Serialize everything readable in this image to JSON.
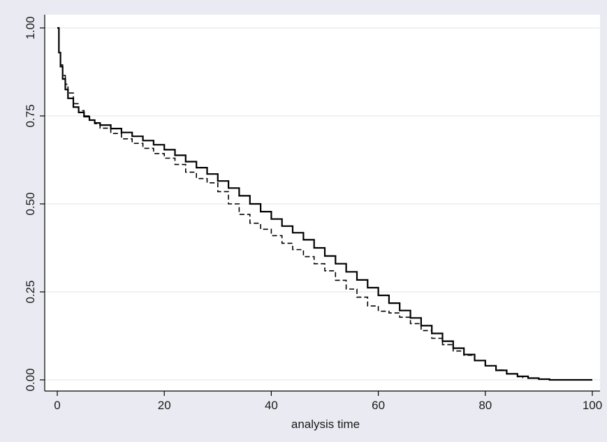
{
  "chart_data": {
    "type": "line",
    "title": "",
    "xlabel": "analysis time",
    "ylabel": "",
    "xlim": [
      0,
      100
    ],
    "ylim": [
      0,
      1
    ],
    "xticks": [
      {
        "value": 0,
        "label": "0"
      },
      {
        "value": 20,
        "label": "20"
      },
      {
        "value": 40,
        "label": "40"
      },
      {
        "value": 60,
        "label": "60"
      },
      {
        "value": 80,
        "label": "80"
      },
      {
        "value": 100,
        "label": "100"
      }
    ],
    "yticks": [
      {
        "value": 0,
        "label": "0.00"
      },
      {
        "value": 0.25,
        "label": "0.25"
      },
      {
        "value": 0.5,
        "label": "0.50"
      },
      {
        "value": 0.75,
        "label": "0.75"
      },
      {
        "value": 1,
        "label": "1.00"
      }
    ],
    "grid": "horizontal",
    "legend": "none",
    "colors": {
      "background": "#eaeaf2",
      "plot_area": "#ffffff",
      "grid": "#e3e9ed",
      "line": "#000000"
    },
    "series": [
      {
        "style": "solid",
        "x": [
          0,
          0.3,
          0.6,
          1,
          1.5,
          2,
          3,
          4,
          5,
          6,
          7,
          8,
          10,
          12,
          14,
          16,
          18,
          20,
          22,
          24,
          26,
          28,
          30,
          32,
          34,
          36,
          38,
          40,
          42,
          44,
          46,
          48,
          50,
          52,
          54,
          56,
          58,
          60,
          62,
          64,
          66,
          68,
          70,
          72,
          74,
          76,
          78,
          80,
          82,
          84,
          86,
          88,
          90,
          92,
          94,
          96,
          98,
          100
        ],
        "y": [
          1.0,
          0.93,
          0.89,
          0.855,
          0.825,
          0.8,
          0.775,
          0.76,
          0.748,
          0.738,
          0.73,
          0.724,
          0.714,
          0.703,
          0.692,
          0.68,
          0.668,
          0.654,
          0.638,
          0.62,
          0.603,
          0.585,
          0.565,
          0.545,
          0.523,
          0.5,
          0.478,
          0.457,
          0.437,
          0.418,
          0.398,
          0.375,
          0.352,
          0.33,
          0.307,
          0.284,
          0.262,
          0.24,
          0.218,
          0.197,
          0.176,
          0.154,
          0.132,
          0.11,
          0.09,
          0.072,
          0.055,
          0.04,
          0.027,
          0.017,
          0.01,
          0.005,
          0.002,
          0.0,
          0.0,
          0.0,
          0.0,
          0.0
        ]
      },
      {
        "style": "dashed",
        "x": [
          0,
          0.3,
          0.6,
          1,
          1.5,
          2,
          3,
          4,
          5,
          6,
          7,
          8,
          10,
          12,
          14,
          16,
          18,
          20,
          22,
          24,
          26,
          28,
          30,
          32,
          34,
          36,
          38,
          40,
          42,
          44,
          46,
          48,
          50,
          52,
          54,
          56,
          58,
          60,
          62,
          64,
          66,
          68,
          70,
          72,
          74,
          76,
          78,
          80,
          82,
          84,
          86,
          87
        ],
        "y": [
          1.0,
          0.93,
          0.895,
          0.865,
          0.84,
          0.815,
          0.785,
          0.765,
          0.75,
          0.738,
          0.728,
          0.715,
          0.7,
          0.685,
          0.672,
          0.658,
          0.643,
          0.63,
          0.612,
          0.59,
          0.572,
          0.56,
          0.535,
          0.5,
          0.47,
          0.445,
          0.428,
          0.41,
          0.388,
          0.37,
          0.35,
          0.33,
          0.31,
          0.283,
          0.258,
          0.235,
          0.21,
          0.195,
          0.19,
          0.178,
          0.16,
          0.14,
          0.118,
          0.1,
          0.082,
          0.07,
          0.055,
          0.04,
          0.028,
          0.017,
          0.009,
          0.005
        ]
      }
    ]
  }
}
